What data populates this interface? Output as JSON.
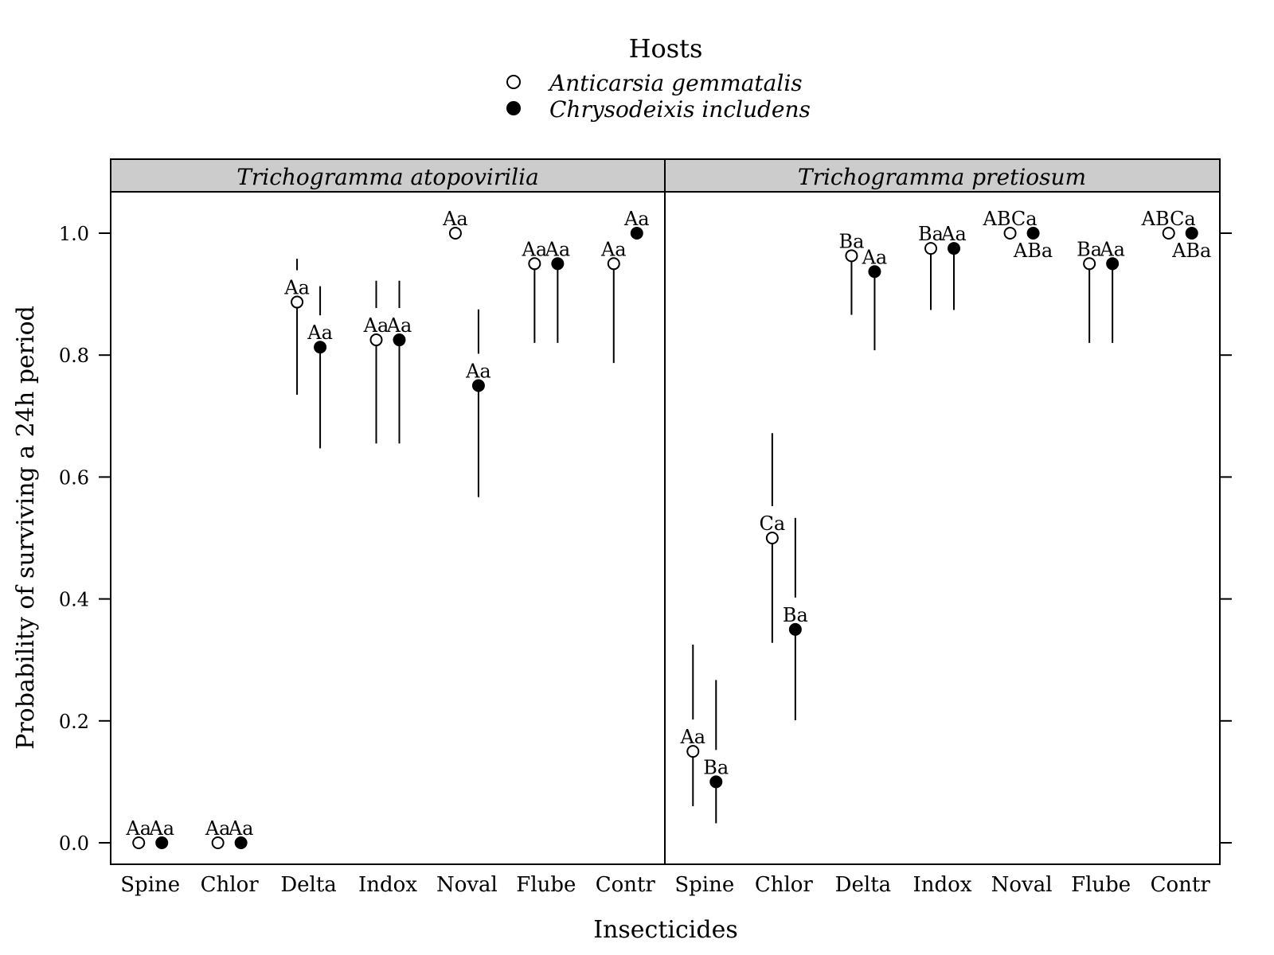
{
  "chart_data": {
    "type": "scatter",
    "subtype": "dot plot with confidence intervals, two panels",
    "legend": {
      "title": "Hosts",
      "placement": "top-center",
      "entries": [
        {
          "label": "Anticarsia gemmatalis",
          "marker": "open-circle"
        },
        {
          "label": "Chrysodeixis includens",
          "marker": "filled-circle"
        }
      ]
    },
    "xlabel": "Insecticides",
    "ylabel": "Probability of surviving a 24h period",
    "ylim": [
      -0.035,
      1.07
    ],
    "yticks": [
      0.0,
      0.2,
      0.4,
      0.6,
      0.8,
      1.0
    ],
    "ytick_labels": [
      "0.0",
      "0.2",
      "0.4",
      "0.6",
      "0.8",
      "1.0"
    ],
    "grid": false,
    "categories": [
      "Spine",
      "Chlor",
      "Delta",
      "Indox",
      "Noval",
      "Flube",
      "Contr"
    ],
    "series_names": [
      "Anticarsia gemmatalis",
      "Chrysodeixis includens"
    ],
    "panels": [
      {
        "title": "Trichogramma atopovirilia",
        "series": [
          {
            "name": "Anticarsia gemmatalis",
            "values": [
              0.0,
              0.0,
              0.887,
              0.825,
              1.0,
              0.95,
              0.95
            ],
            "lower": [
              null,
              null,
              0.735,
              0.655,
              null,
              0.82,
              0.787
            ],
            "upper": [
              null,
              null,
              0.958,
              0.922,
              null,
              null,
              null
            ],
            "labels": [
              "Aa",
              "Aa",
              "Aa",
              "Aa",
              "Aa",
              "Aa",
              "Aa"
            ]
          },
          {
            "name": "Chrysodeixis includens",
            "values": [
              0.0,
              0.0,
              0.813,
              0.825,
              0.75,
              0.95,
              1.0
            ],
            "lower": [
              null,
              null,
              0.647,
              0.655,
              0.567,
              0.82,
              null
            ],
            "upper": [
              null,
              null,
              0.913,
              0.922,
              0.875,
              null,
              null
            ],
            "labels": [
              "Aa",
              "Aa",
              "Aa",
              "Aa",
              "Aa",
              "Aa",
              "Aa"
            ]
          }
        ]
      },
      {
        "title": "Trichogramma pretiosum",
        "series": [
          {
            "name": "Anticarsia gemmatalis",
            "values": [
              0.15,
              0.5,
              0.963,
              0.975,
              1.0,
              0.95,
              1.0
            ],
            "lower": [
              0.06,
              0.328,
              0.866,
              0.874,
              null,
              0.82,
              null
            ],
            "upper": [
              0.325,
              0.672,
              null,
              null,
              null,
              null,
              null
            ],
            "labels": [
              "Aa",
              "Ca",
              "Ba",
              "Ba",
              "ABCa",
              "Ba",
              "ABCa"
            ]
          },
          {
            "name": "Chrysodeixis includens",
            "values": [
              0.1,
              0.35,
              0.937,
              0.975,
              1.0,
              0.95,
              1.0
            ],
            "lower": [
              0.032,
              0.201,
              0.808,
              0.874,
              null,
              0.82,
              null
            ],
            "upper": [
              0.267,
              0.533,
              null,
              null,
              null,
              null,
              null
            ],
            "labels": [
              "Ba",
              "Ba",
              "Aa",
              "Aa",
              "ABa",
              "Aa",
              "ABa"
            ]
          }
        ]
      }
    ]
  }
}
